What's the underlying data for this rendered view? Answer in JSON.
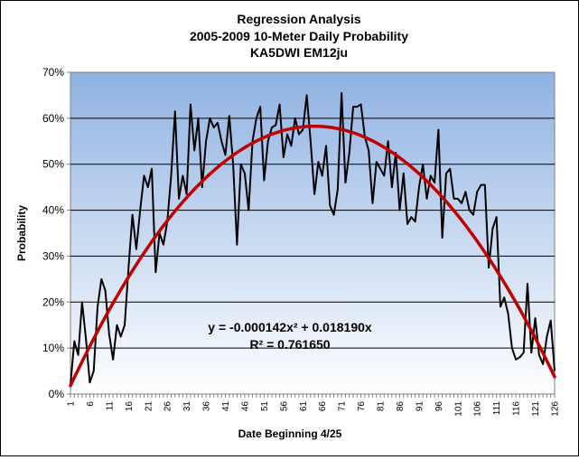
{
  "chart_data": {
    "type": "line",
    "title": [
      "Regression Analysis",
      "2005-2009 10-Meter Daily Probability",
      "KA5DWI EM12ju"
    ],
    "xlabel": "Date Beginning 4/25",
    "ylabel": "Probability",
    "xlim": [
      1,
      126
    ],
    "ylim": [
      0,
      70
    ],
    "y_unit": "%",
    "grid": true,
    "legend": "none",
    "x_ticks": [
      1,
      6,
      11,
      16,
      21,
      26,
      31,
      36,
      41,
      46,
      51,
      56,
      61,
      66,
      71,
      76,
      81,
      86,
      91,
      96,
      101,
      106,
      111,
      116,
      121,
      126
    ],
    "y_ticks": [
      0,
      10,
      20,
      30,
      40,
      50,
      60,
      70
    ],
    "series": [
      {
        "role": "observed",
        "color": "#000000",
        "x": [
          1,
          2,
          3,
          4,
          5,
          6,
          7,
          8,
          9,
          10,
          11,
          12,
          13,
          14,
          15,
          16,
          17,
          18,
          19,
          20,
          21,
          22,
          23,
          24,
          25,
          26,
          27,
          28,
          29,
          30,
          31,
          32,
          33,
          34,
          35,
          36,
          37,
          38,
          39,
          40,
          41,
          42,
          43,
          44,
          45,
          46,
          47,
          48,
          49,
          50,
          51,
          52,
          53,
          54,
          55,
          56,
          57,
          58,
          59,
          60,
          61,
          62,
          63,
          64,
          65,
          66,
          67,
          68,
          69,
          70,
          71,
          72,
          73,
          74,
          75,
          76,
          77,
          78,
          79,
          80,
          81,
          82,
          83,
          84,
          85,
          86,
          87,
          88,
          89,
          90,
          91,
          92,
          93,
          94,
          95,
          96,
          97,
          98,
          99,
          100,
          101,
          102,
          103,
          104,
          105,
          106,
          107,
          108,
          109,
          110,
          111,
          112,
          113,
          114,
          115,
          116,
          117,
          118,
          119,
          120,
          121,
          122,
          123,
          124,
          125,
          126
        ],
        "values": [
          2,
          11.5,
          8.5,
          20,
          12,
          2.5,
          5,
          19,
          25,
          22.5,
          13,
          7.5,
          15,
          12.5,
          15,
          27.5,
          39,
          31.5,
          40,
          47.5,
          45,
          49,
          26.5,
          35,
          32.5,
          37.5,
          47.5,
          61.5,
          42.5,
          47.5,
          43.5,
          63,
          53,
          60,
          45,
          55,
          60,
          58,
          59,
          55,
          52,
          60.5,
          50,
          32.5,
          50,
          48,
          40,
          55,
          60,
          62.5,
          46.5,
          55,
          58,
          58.5,
          63,
          51.5,
          56.5,
          54,
          60,
          56.5,
          57.5,
          65,
          55,
          43.5,
          50.5,
          47.5,
          54,
          41,
          39,
          44.5,
          65.5,
          46,
          52.5,
          62.5,
          62.5,
          63,
          56,
          53,
          41.5,
          50.5,
          49,
          47.5,
          55,
          45,
          52.5,
          40,
          48,
          37,
          38.5,
          37.5,
          45,
          50,
          42.5,
          47.5,
          46,
          57.5,
          34,
          48,
          49,
          42.5,
          42.5,
          41.5,
          44,
          40,
          39,
          44,
          45.5,
          45.5,
          27.5,
          36,
          38.5,
          19,
          21,
          17.5,
          10,
          7.5,
          8,
          9,
          24,
          9,
          16.5,
          8.5,
          6.5,
          12.5,
          16,
          5
        ]
      },
      {
        "role": "regression",
        "type": "polynomial",
        "color": "#c00000",
        "coefficients": {
          "a": -0.000142,
          "b": 0.01819
        }
      }
    ],
    "annotations": {
      "equation": "y = -0.000142x² + 0.018190x",
      "r_squared": "R² = 0.761650"
    }
  }
}
